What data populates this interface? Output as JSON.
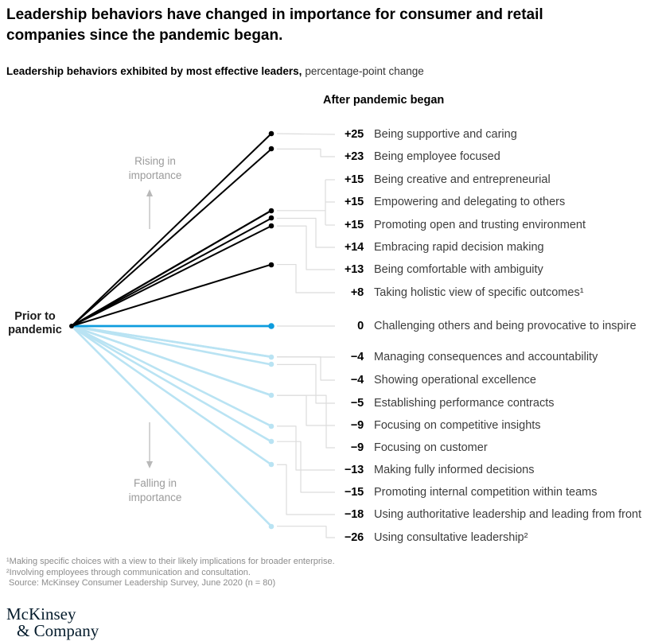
{
  "header": {
    "title": "Leadership behaviors have changed in importance for consumer and retail companies since the pandemic began.",
    "subtitle_bold": "Leadership behaviors exhibited by most effective leaders,",
    "subtitle_regular": "percentage-point change"
  },
  "chart_data": {
    "type": "slopegraph",
    "title": "Leadership behaviors exhibited by most effective leaders, percentage-point change",
    "left_state_label": "Prior to pandemic",
    "right_state_label": "After pandemic began",
    "unit": "percentage-point change",
    "annotations": {
      "rising": "Rising in importance",
      "falling": "Falling in importance"
    },
    "points": [
      {
        "change": 25,
        "display": "+25",
        "label": "Being supportive and caring"
      },
      {
        "change": 23,
        "display": "+23",
        "label": "Being employee focused"
      },
      {
        "change": 15,
        "display": "+15",
        "label": "Being creative and entrepreneurial"
      },
      {
        "change": 15,
        "display": "+15",
        "label": "Empowering and delegating to others"
      },
      {
        "change": 15,
        "display": "+15",
        "label": "Promoting open and trusting environment"
      },
      {
        "change": 14,
        "display": "+14",
        "label": "Embracing rapid decision making"
      },
      {
        "change": 13,
        "display": "+13",
        "label": "Being comfortable with ambiguity"
      },
      {
        "change": 8,
        "display": "+8",
        "label": "Taking holistic view of specific outcomes¹"
      },
      {
        "change": 0,
        "display": "0",
        "label": "Challenging others and being provocative to inspire"
      },
      {
        "change": -4,
        "display": "−4",
        "label": "Managing consequences and accountability"
      },
      {
        "change": -4,
        "display": "−4",
        "label": "Showing operational excellence"
      },
      {
        "change": -5,
        "display": "−5",
        "label": "Establishing performance contracts"
      },
      {
        "change": -9,
        "display": "−9",
        "label": "Focusing on competitive insights"
      },
      {
        "change": -9,
        "display": "−9",
        "label": "Focusing on customer"
      },
      {
        "change": -13,
        "display": "−13",
        "label": "Making fully informed decisions"
      },
      {
        "change": -15,
        "display": "−15",
        "label": "Promoting internal competition within teams"
      },
      {
        "change": -18,
        "display": "−18",
        "label": "Using authoritative leadership and leading from front"
      },
      {
        "change": -26,
        "display": "−26",
        "label": "Using consultative leadership²"
      }
    ],
    "colors": {
      "positive_line": "#000000",
      "zero_line": "#0d9cde",
      "negative_line": "#b9e3f3",
      "connector": "#dcdcdc",
      "annotation_gray": "#9b9b9b"
    }
  },
  "footnotes": [
    "¹Making specific choices with a view to their likely implications for broader enterprise.",
    "²Involving employees through communication and consultation.",
    "Source: McKinsey Consumer Leadership Survey, June 2020 (n = 80)"
  ],
  "logo": {
    "line1": "McKinsey",
    "line2": "& Company"
  }
}
